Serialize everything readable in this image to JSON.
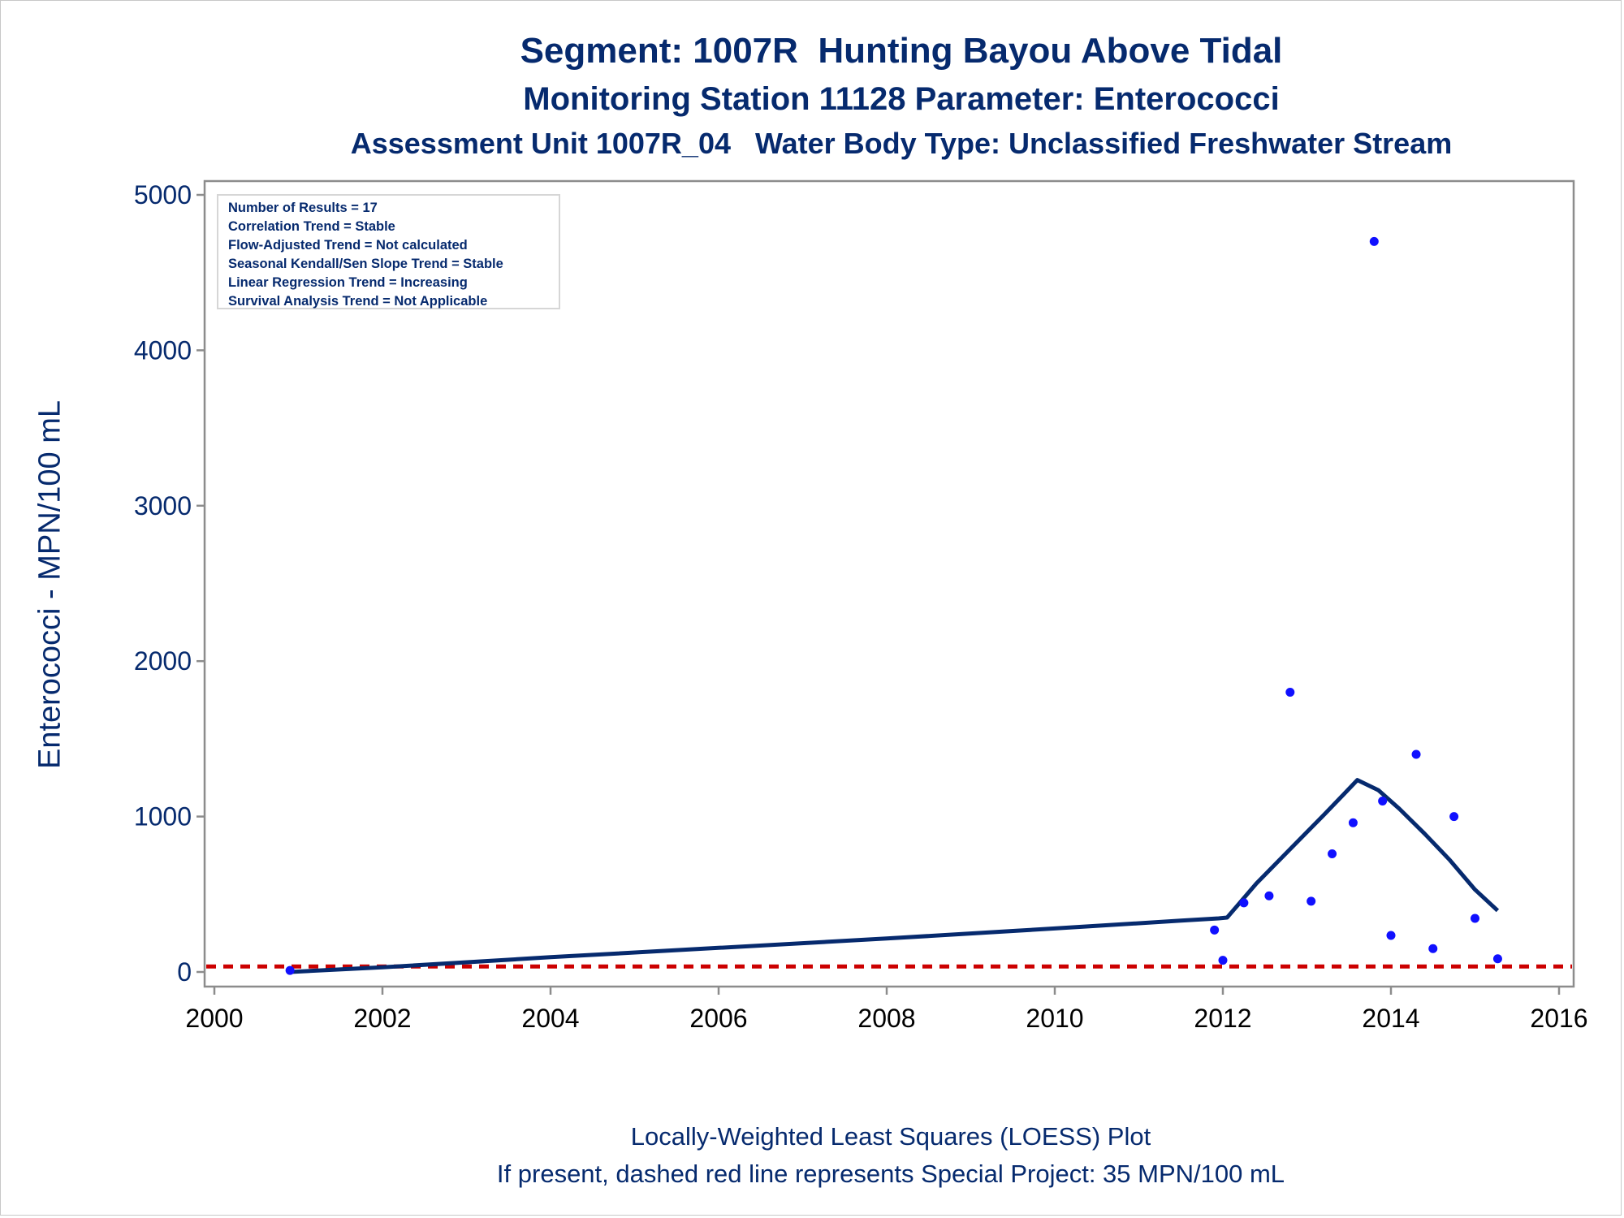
{
  "titles": {
    "line1": "Segment: 1007R  Hunting Bayou Above Tidal",
    "line2": "Monitoring Station 11128 Parameter: Enterococci",
    "line3": "Assessment Unit 1007R_04   Water Body Type: Unclassified Freshwater Stream"
  },
  "footnotes": {
    "line1": "Locally-Weighted Least Squares (LOESS) Plot",
    "line2": "If present, dashed red line represents Special Project: 35 MPN/100 mL"
  },
  "stats": [
    "Number of Results = 17",
    "Correlation Trend = Stable",
    "Flow-Adjusted Trend = Not calculated",
    "Seasonal Kendall/Sen Slope Trend = Stable",
    "Linear Regression Trend = Increasing",
    "Survival Analysis Trend = Not Applicable"
  ],
  "colors": {
    "title": "#062a6e",
    "points": "#1010ff",
    "loess": "#062a6e",
    "reference": "#cc0000",
    "axis": "#8c8c8c"
  },
  "chart_data": {
    "type": "scatter",
    "ylabel": "Enterococci - MPN/100 mL",
    "xlabel": "",
    "xlim": [
      2000,
      2016
    ],
    "ylim": [
      0,
      5000
    ],
    "xticks": [
      2000,
      2002,
      2004,
      2006,
      2008,
      2010,
      2012,
      2014,
      2016
    ],
    "yticks": [
      0,
      1000,
      2000,
      3000,
      4000,
      5000
    ],
    "grid": false,
    "series": [
      {
        "type": "scatter",
        "x": [
          2000.9,
          2011.9,
          2012.0,
          2012.25,
          2012.55,
          2012.8,
          2013.05,
          2013.3,
          2013.55,
          2013.8,
          2013.9,
          2014.0,
          2014.3,
          2014.5,
          2014.75,
          2015.0,
          2015.27
        ],
        "y": [
          10,
          270,
          75,
          445,
          490,
          1800,
          455,
          760,
          960,
          4700,
          1100,
          235,
          1400,
          150,
          1000,
          345,
          85
        ]
      },
      {
        "type": "line",
        "x": [
          2000.9,
          2002.0,
          2004.0,
          2006.0,
          2008.0,
          2010.0,
          2011.5,
          2011.95,
          2012.05,
          2012.4,
          2012.8,
          2013.2,
          2013.45,
          2013.6,
          2013.85,
          2014.1,
          2014.4,
          2014.7,
          2015.0,
          2015.27
        ],
        "y": [
          0,
          30,
          95,
          155,
          215,
          280,
          330,
          345,
          350,
          570,
          790,
          1010,
          1150,
          1235,
          1170,
          1050,
          890,
          720,
          530,
          395
        ]
      },
      {
        "type": "reference",
        "y": 35
      }
    ]
  }
}
